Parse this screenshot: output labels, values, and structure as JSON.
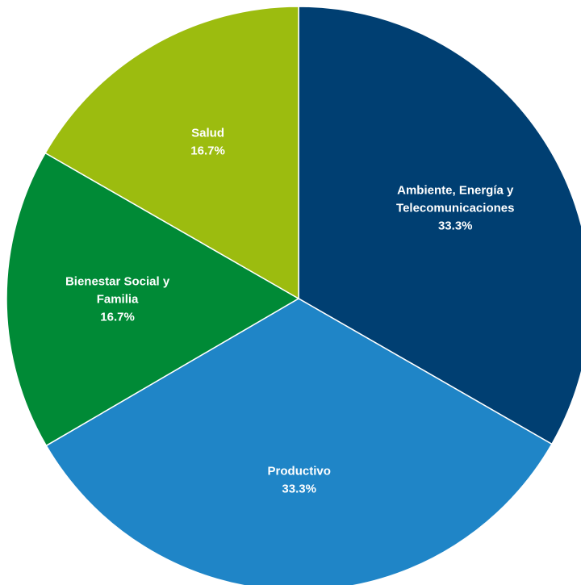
{
  "chart_data": {
    "type": "pie",
    "start_angle_deg": 0,
    "direction": "clockwise",
    "slices": [
      {
        "label_lines": [
          "Ambiente, Energía y",
          "Telecomunicaciones"
        ],
        "value": 33.3,
        "value_label": "33.3%",
        "color": "#003f72"
      },
      {
        "label_lines": [
          "Productivo"
        ],
        "value": 33.3,
        "value_label": "33.3%",
        "color": "#1f85c7"
      },
      {
        "label_lines": [
          "Bienestar Social y",
          "Familia"
        ],
        "value": 16.7,
        "value_label": "16.7%",
        "color": "#008a36"
      },
      {
        "label_lines": [
          "Salud"
        ],
        "value": 16.7,
        "value_label": "16.7%",
        "color": "#9cbc0f"
      }
    ]
  }
}
